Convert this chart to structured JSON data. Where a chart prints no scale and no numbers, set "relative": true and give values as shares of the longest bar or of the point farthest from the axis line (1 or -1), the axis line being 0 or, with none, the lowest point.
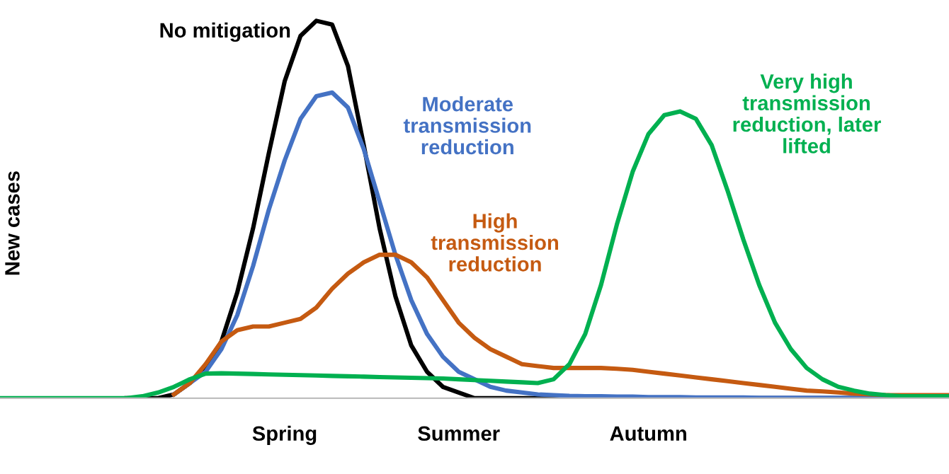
{
  "chart_data": {
    "type": "line",
    "relative": true,
    "ylabel": "New cases",
    "grid": false,
    "legend": false,
    "marker": "none",
    "line_style": "solid",
    "categories": [
      null,
      null,
      null,
      null,
      null,
      null,
      null,
      null,
      null,
      null,
      null,
      null,
      null,
      null,
      null,
      null,
      null,
      null,
      "Spring",
      null,
      null,
      null,
      null,
      null,
      null,
      null,
      null,
      null,
      null,
      "Summer",
      null,
      null,
      null,
      null,
      null,
      null,
      null,
      null,
      null,
      null,
      null,
      "Autumn",
      null,
      null,
      null,
      null,
      null,
      null,
      null,
      null,
      null,
      null,
      null,
      null,
      null,
      null,
      null,
      null,
      null,
      null,
      null
    ],
    "series": [
      {
        "name": "No mitigation",
        "color": "#000000",
        "values": [
          null,
          null,
          null,
          null,
          null,
          null,
          null,
          null,
          0,
          0,
          0,
          0.01,
          0.04,
          0.08,
          0.15,
          0.28,
          0.45,
          0.65,
          0.84,
          0.96,
          1.0,
          0.99,
          0.88,
          0.67,
          0.45,
          0.27,
          0.14,
          0.07,
          0.03,
          0.015,
          0,
          0,
          0,
          0,
          0,
          0,
          0,
          0,
          0,
          0,
          0,
          0,
          0,
          0,
          0,
          0,
          0,
          0,
          0,
          0,
          0,
          0,
          0,
          0,
          0,
          0,
          0,
          0,
          null,
          null,
          null
        ]
      },
      {
        "name": "Moderate transmission reduction",
        "color": "#4472c4",
        "values": [
          null,
          null,
          null,
          null,
          null,
          null,
          null,
          null,
          null,
          null,
          null,
          0.01,
          0.04,
          0.07,
          0.13,
          0.22,
          0.35,
          0.5,
          0.63,
          0.74,
          0.8,
          0.81,
          0.77,
          0.66,
          0.52,
          0.38,
          0.26,
          0.17,
          0.11,
          0.07,
          0.05,
          0.03,
          0.02,
          0.015,
          0.01,
          0.008,
          0.006,
          0.005,
          0.005,
          0.004,
          0.004,
          0.003,
          0.003,
          0.003,
          0.002,
          0.002,
          0.002,
          0.002,
          0.001,
          0.001,
          0.001,
          0.001,
          0.001,
          0.001,
          0.001,
          0,
          0,
          0,
          null,
          null,
          null
        ]
      },
      {
        "name": "High transmission reduction",
        "color": "#c55a11",
        "values": [
          null,
          null,
          null,
          null,
          null,
          null,
          null,
          null,
          null,
          null,
          null,
          0.01,
          0.04,
          0.09,
          0.15,
          0.18,
          0.19,
          0.19,
          0.2,
          0.21,
          0.24,
          0.29,
          0.33,
          0.36,
          0.38,
          0.38,
          0.36,
          0.32,
          0.26,
          0.2,
          0.16,
          0.13,
          0.11,
          0.09,
          0.085,
          0.08,
          0.08,
          0.08,
          0.08,
          0.078,
          0.075,
          0.07,
          0.065,
          0.06,
          0.055,
          0.05,
          0.045,
          0.04,
          0.035,
          0.03,
          0.025,
          0.02,
          0.018,
          0.015,
          0.012,
          0.01,
          0.008,
          0.008,
          0.008,
          0.008,
          0.008
        ]
      },
      {
        "name": "Very high transmission reduction, later lifted",
        "color": "#00b050",
        "values": [
          0,
          0,
          0,
          0,
          0,
          0,
          0,
          0,
          0,
          0.005,
          0.015,
          0.03,
          0.05,
          0.065,
          0.066,
          0.065,
          0.064,
          0.063,
          0.062,
          0.061,
          0.06,
          0.059,
          0.058,
          0.057,
          0.056,
          0.055,
          0.054,
          0.053,
          0.052,
          0.05,
          0.048,
          0.046,
          0.044,
          0.042,
          0.04,
          0.05,
          0.09,
          0.17,
          0.3,
          0.46,
          0.6,
          0.7,
          0.75,
          0.76,
          0.74,
          0.67,
          0.55,
          0.42,
          0.3,
          0.2,
          0.13,
          0.08,
          0.05,
          0.03,
          0.02,
          0.012,
          0.008,
          0.005,
          0.005,
          0.005,
          0.005
        ]
      }
    ]
  }
}
